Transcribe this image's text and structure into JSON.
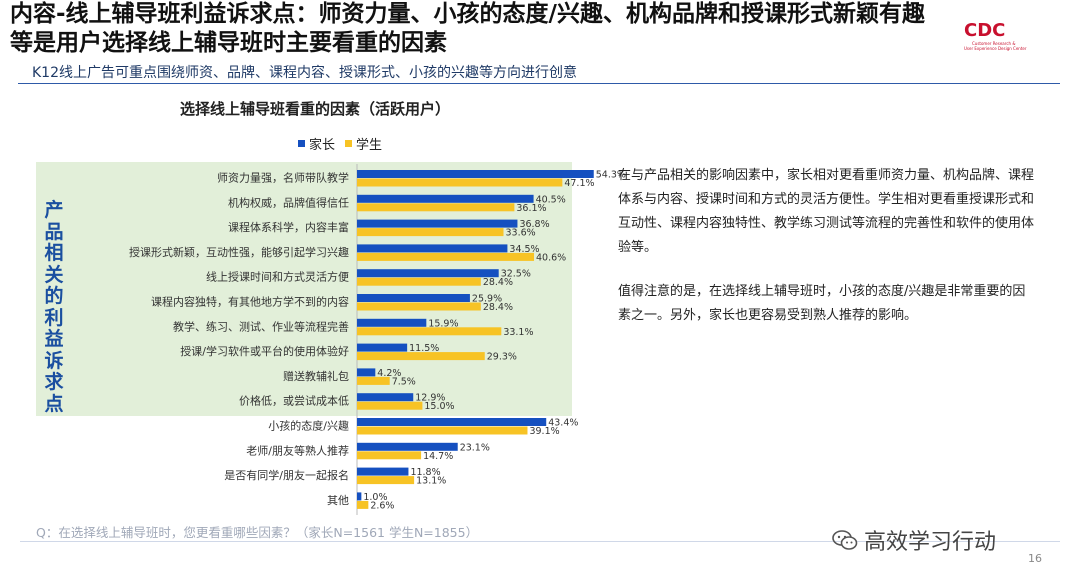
{
  "header": {
    "title": "内容-线上辅导班利益诉求点：师资力量、小孩的态度/兴趣、机构品牌和授课形式新颖有趣等是用户选择线上辅导班时主要看重的因素",
    "subtitle": "K12线上广告可重点围绕师资、品牌、课程内容、授课形式、小孩的兴趣等方向进行创意"
  },
  "logo": {
    "text": "CDC",
    "sub1": "Customer Research &",
    "sub2": "User Experience Design Center"
  },
  "chart_data": {
    "type": "bar",
    "orientation": "horizontal",
    "title": "选择线上辅导班看重的因素（活跃用户）",
    "categories": [
      "师资力量强，名师带队教学",
      "机构权威，品牌值得信任",
      "课程体系科学，内容丰富",
      "授课形式新颖，互动性强，能够引起学习兴趣",
      "线上授课时间和方式灵活方便",
      "课程内容独特，有其他地方学不到的内容",
      "教学、练习、测试、作业等流程完善",
      "授课/学习软件或平台的使用体验好",
      "赠送教辅礼包",
      "价格低，或尝试成本低",
      "小孩的态度/兴趣",
      "老师/朋友等熟人推荐",
      "是否有同学/朋友一起报名",
      "其他"
    ],
    "series": [
      {
        "name": "家长",
        "color": "#1550c0",
        "values": [
          54.3,
          40.5,
          36.8,
          34.5,
          32.5,
          25.9,
          15.9,
          11.5,
          4.2,
          12.9,
          43.4,
          23.1,
          11.8,
          1.0
        ]
      },
      {
        "name": "学生",
        "color": "#f7c325",
        "values": [
          47.1,
          36.1,
          33.6,
          40.6,
          28.4,
          28.4,
          33.1,
          29.3,
          7.5,
          15.0,
          39.1,
          14.7,
          13.1,
          2.6
        ]
      }
    ],
    "value_suffix": "%",
    "xlim": [
      0,
      60
    ],
    "legend_position": "top",
    "grid": false
  },
  "group_label": "产品相关的利益诉求点",
  "right_text": {
    "p1": "在与产品相关的影响因素中，家长相对更看重师资力量、机构品牌、课程体系与内容、授课时间和方式的灵活方便性。学生相对更看重授课形式和互动性、课程内容独特性、教学练习测试等流程的完善性和软件的使用体验等。",
    "p2": "值得注意的是，在选择线上辅导班时，小孩的态度/兴趣是非常重要的因素之一。另外，家长也更容易受到熟人推荐的影响。"
  },
  "footnote": "Q：在选择线上辅导班时，您更看重哪些因素？（家长N=1561    学生N=1855）",
  "watermark": "高效学习行动",
  "page_number": "16"
}
